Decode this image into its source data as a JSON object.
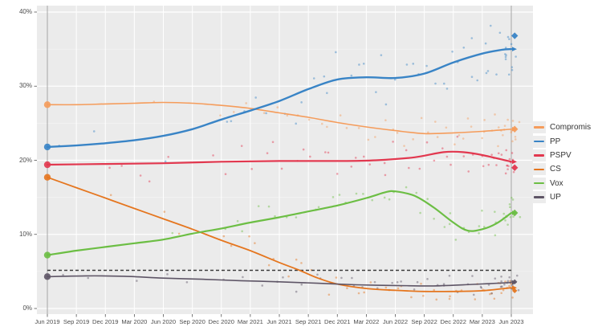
{
  "chart_data": {
    "type": "scatter",
    "subtype": "polling-trends-with-loess-lines",
    "title": "",
    "x_unit": "months since Jun 2019",
    "x_tick_months": [
      0,
      3,
      6,
      9,
      12,
      15,
      18,
      21,
      24,
      27,
      30,
      33,
      36,
      39,
      42,
      45,
      48
    ],
    "x_tick_labels": [
      "Jun 2019",
      "Sep 2019",
      "Dec 2019",
      "Mar 2020",
      "Jun 2020",
      "Sep 2020",
      "Dec 2020",
      "Mar 2021",
      "Jun 2021",
      "Sep 2021",
      "Dec 2021",
      "Mar 2022",
      "Jun 2022",
      "Sep 2022",
      "Dec 2022",
      "Mar 2023",
      "Jun 2023"
    ],
    "y_ticks": [
      0,
      10,
      20,
      30,
      40
    ],
    "y_tick_labels": [
      "0%",
      "10%",
      "20%",
      "30%",
      "40%"
    ],
    "ylim": [
      0,
      41
    ],
    "grid": "white-on-gray",
    "legend_position": "right",
    "threshold_line": {
      "value": 5,
      "style": "dashed",
      "color": "#3a3a3a"
    },
    "election_day_lines_months": [
      0,
      48
    ],
    "series": [
      {
        "name": "Compromis",
        "color": "#F59C5B",
        "line_width": 1.6,
        "start_2019": 27.5,
        "result_2023": 24.2,
        "trend": [
          [
            0,
            27.5
          ],
          [
            3,
            27.5
          ],
          [
            6,
            27.6
          ],
          [
            9,
            27.7
          ],
          [
            12,
            27.8
          ],
          [
            15,
            27.7
          ],
          [
            18,
            27.4
          ],
          [
            21,
            27.0
          ],
          [
            24,
            26.4
          ],
          [
            27,
            25.8
          ],
          [
            30,
            25.1
          ],
          [
            33,
            24.5
          ],
          [
            36,
            24.0
          ],
          [
            39,
            23.6
          ],
          [
            42,
            23.7
          ],
          [
            45,
            23.9
          ],
          [
            48,
            24.2
          ]
        ]
      },
      {
        "name": "PP",
        "color": "#3984C6",
        "line_width": 2.4,
        "start_2019": 21.8,
        "result_2023": 36.8,
        "trend": [
          [
            0,
            21.8
          ],
          [
            3,
            22.0
          ],
          [
            6,
            22.3
          ],
          [
            9,
            22.7
          ],
          [
            12,
            23.3
          ],
          [
            15,
            24.2
          ],
          [
            18,
            25.5
          ],
          [
            21,
            26.7
          ],
          [
            24,
            28.0
          ],
          [
            27,
            29.6
          ],
          [
            30,
            30.9
          ],
          [
            33,
            31.2
          ],
          [
            36,
            31.1
          ],
          [
            39,
            31.7
          ],
          [
            42,
            33.2
          ],
          [
            45,
            34.4
          ],
          [
            47,
            34.9
          ],
          [
            48,
            35.0
          ]
        ]
      },
      {
        "name": "PSPV",
        "color": "#E2384F",
        "line_width": 2.2,
        "start_2019": 19.4,
        "result_2023": 19.0,
        "trend": [
          [
            0,
            19.4
          ],
          [
            6,
            19.5
          ],
          [
            12,
            19.6
          ],
          [
            18,
            19.8
          ],
          [
            24,
            19.9
          ],
          [
            30,
            19.9
          ],
          [
            34,
            20.0
          ],
          [
            38,
            20.4
          ],
          [
            41,
            21.1
          ],
          [
            43,
            21.1
          ],
          [
            45,
            20.7
          ],
          [
            48,
            19.8
          ]
        ]
      },
      {
        "name": "CS",
        "color": "#E5761F",
        "line_width": 1.8,
        "start_2019": 17.7,
        "result_2023": 2.4,
        "trend": [
          [
            0,
            17.7
          ],
          [
            3,
            16.3
          ],
          [
            6,
            14.9
          ],
          [
            9,
            13.5
          ],
          [
            12,
            12.1
          ],
          [
            15,
            10.7
          ],
          [
            18,
            9.2
          ],
          [
            21,
            7.8
          ],
          [
            24,
            6.2
          ],
          [
            26,
            5.2
          ],
          [
            28,
            4.1
          ],
          [
            30,
            3.3
          ],
          [
            33,
            2.7
          ],
          [
            36,
            2.45
          ],
          [
            39,
            2.3
          ],
          [
            42,
            2.3
          ],
          [
            45,
            2.4
          ],
          [
            48,
            2.8
          ]
        ]
      },
      {
        "name": "Vox",
        "color": "#6CBE44",
        "line_width": 2.2,
        "start_2019": 7.2,
        "result_2023": 12.9,
        "trend": [
          [
            0,
            7.2
          ],
          [
            3,
            7.8
          ],
          [
            6,
            8.3
          ],
          [
            9,
            8.8
          ],
          [
            12,
            9.3
          ],
          [
            15,
            10.1
          ],
          [
            18,
            10.8
          ],
          [
            21,
            11.6
          ],
          [
            24,
            12.3
          ],
          [
            27,
            13.1
          ],
          [
            30,
            13.9
          ],
          [
            33,
            14.9
          ],
          [
            35,
            15.7
          ],
          [
            36,
            15.8
          ],
          [
            38,
            15.2
          ],
          [
            40,
            13.6
          ],
          [
            42,
            11.6
          ],
          [
            43.5,
            10.5
          ],
          [
            45,
            10.7
          ],
          [
            46.5,
            11.5
          ],
          [
            48,
            12.9
          ]
        ]
      },
      {
        "name": "UP",
        "color": "#5E5566",
        "line_width": 1.6,
        "start_2019": 4.3,
        "result_2023": 3.6,
        "trend": [
          [
            0,
            4.3
          ],
          [
            4,
            4.4
          ],
          [
            8,
            4.35
          ],
          [
            12,
            4.1
          ],
          [
            16,
            3.95
          ],
          [
            20,
            3.75
          ],
          [
            24,
            3.6
          ],
          [
            28,
            3.4
          ],
          [
            32,
            3.2
          ],
          [
            36,
            3.1
          ],
          [
            40,
            3.05
          ],
          [
            44,
            3.25
          ],
          [
            48,
            3.5
          ]
        ]
      }
    ],
    "colors": {
      "plot_bg": "#EBEBEB",
      "grid": "#FFFFFF",
      "tick_text": "#4D4D4D",
      "election_line": "#A6A6A6",
      "legend_key_bg": "#ECECEC"
    }
  },
  "scatter_spec": {
    "seed": 11,
    "dot_radius": 1.3,
    "dot_opacity": 0.45,
    "poll_months": [
      1.2,
      2.8,
      4.5,
      6.5,
      8.0,
      9.5,
      11.0,
      12.5,
      14.0,
      15.5,
      17.0,
      18.2,
      19.4,
      20.5,
      21.6,
      22.6,
      23.6,
      24.6,
      25.6,
      26.6,
      27.5,
      28.4,
      29.3,
      30.2,
      31.1,
      32.0,
      32.9,
      33.8,
      34.6,
      35.4,
      36.2,
      37.0,
      37.8,
      38.6,
      39.3,
      40.0,
      40.7,
      41.4,
      42.0,
      42.6,
      43.2,
      43.8,
      44.3,
      44.8,
      45.2,
      45.6,
      46.0,
      46.3,
      46.6,
      46.9,
      47.1,
      47.3,
      47.5,
      47.6,
      47.7,
      47.8,
      47.9,
      48.0,
      48.1,
      48.2,
      48.3,
      48.5
    ],
    "sigma_by_series": {
      "Compromis": 1.1,
      "PP": 2.0,
      "PSPV": 1.3,
      "CS": 0.9,
      "Vox": 1.3,
      "UP": 0.7
    }
  }
}
